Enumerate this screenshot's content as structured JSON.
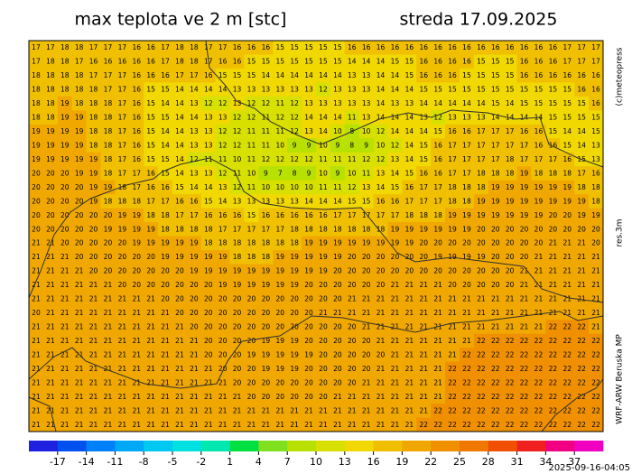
{
  "title": "max teplota ve 2 m [stc]",
  "date": "streda 17.09.2025",
  "copyright": "(c)meteopress",
  "resolution": "res.3m",
  "model": "WRF-ARW Beruska MP",
  "timestamp": "2025-09-16-04:05",
  "grid": {
    "rows": [
      [
        17,
        17,
        18,
        18,
        17,
        17,
        17,
        16,
        16,
        17,
        18,
        18,
        17,
        17,
        16,
        16,
        16,
        15,
        15,
        15,
        15,
        15,
        16,
        16,
        16,
        16,
        16,
        16,
        16,
        16,
        16,
        16,
        16,
        16,
        16,
        16,
        16,
        17,
        17,
        17
      ],
      [
        17,
        18,
        18,
        17,
        16,
        16,
        16,
        16,
        16,
        17,
        18,
        18,
        17,
        16,
        16,
        15,
        15,
        15,
        15,
        15,
        15,
        15,
        14,
        14,
        14,
        15,
        15,
        16,
        16,
        16,
        16,
        15,
        15,
        15,
        16,
        16,
        16,
        17,
        17,
        17
      ],
      [
        18,
        18,
        18,
        18,
        17,
        17,
        17,
        16,
        16,
        16,
        17,
        17,
        16,
        15,
        15,
        15,
        14,
        14,
        14,
        14,
        14,
        14,
        13,
        13,
        14,
        14,
        15,
        16,
        16,
        16,
        15,
        15,
        15,
        15,
        16,
        16,
        16,
        16,
        16,
        16
      ],
      [
        18,
        18,
        18,
        18,
        18,
        17,
        17,
        16,
        15,
        15,
        14,
        14,
        14,
        14,
        13,
        13,
        13,
        13,
        13,
        13,
        12,
        13,
        13,
        13,
        14,
        14,
        14,
        15,
        15,
        15,
        15,
        15,
        15,
        15,
        15,
        15,
        15,
        15,
        16,
        16
      ],
      [
        18,
        18,
        19,
        18,
        18,
        18,
        17,
        16,
        15,
        14,
        14,
        13,
        12,
        12,
        13,
        12,
        12,
        11,
        12,
        13,
        13,
        13,
        13,
        13,
        14,
        13,
        13,
        14,
        14,
        14,
        14,
        14,
        15,
        14,
        15,
        15,
        15,
        15,
        15,
        16
      ],
      [
        18,
        18,
        19,
        19,
        18,
        18,
        17,
        16,
        15,
        15,
        14,
        14,
        13,
        13,
        12,
        12,
        11,
        12,
        12,
        14,
        14,
        14,
        11,
        13,
        14,
        14,
        14,
        13,
        12,
        13,
        13,
        13,
        14,
        14,
        14,
        14,
        15,
        15,
        15,
        15
      ],
      [
        19,
        19,
        19,
        19,
        18,
        18,
        17,
        16,
        15,
        14,
        14,
        13,
        13,
        12,
        12,
        11,
        11,
        11,
        12,
        13,
        14,
        10,
        8,
        10,
        12,
        14,
        14,
        14,
        15,
        16,
        16,
        17,
        17,
        17,
        16,
        16,
        15,
        14,
        14,
        15
      ],
      [
        19,
        19,
        19,
        19,
        18,
        18,
        17,
        16,
        15,
        14,
        14,
        13,
        13,
        12,
        12,
        11,
        11,
        10,
        9,
        9,
        10,
        9,
        8,
        9,
        10,
        12,
        14,
        15,
        16,
        17,
        17,
        17,
        17,
        17,
        17,
        16,
        16,
        15,
        14,
        13
      ],
      [
        19,
        19,
        19,
        19,
        19,
        18,
        17,
        16,
        15,
        15,
        14,
        12,
        11,
        11,
        10,
        11,
        12,
        12,
        12,
        12,
        11,
        11,
        11,
        12,
        12,
        13,
        14,
        15,
        16,
        17,
        17,
        17,
        17,
        18,
        17,
        17,
        17,
        16,
        15,
        13
      ],
      [
        20,
        20,
        20,
        19,
        19,
        18,
        17,
        17,
        16,
        15,
        14,
        13,
        13,
        12,
        11,
        10,
        9,
        7,
        8,
        9,
        10,
        9,
        10,
        11,
        13,
        14,
        15,
        16,
        16,
        17,
        17,
        18,
        18,
        18,
        19,
        18,
        18,
        18,
        17,
        16
      ],
      [
        20,
        20,
        20,
        20,
        19,
        19,
        18,
        17,
        16,
        16,
        15,
        14,
        14,
        13,
        12,
        11,
        10,
        10,
        10,
        10,
        11,
        11,
        12,
        13,
        14,
        15,
        16,
        17,
        17,
        18,
        18,
        18,
        19,
        19,
        19,
        19,
        19,
        19,
        18,
        18
      ],
      [
        20,
        20,
        20,
        20,
        19,
        18,
        18,
        18,
        17,
        17,
        16,
        16,
        15,
        14,
        13,
        13,
        13,
        13,
        13,
        14,
        14,
        14,
        15,
        15,
        16,
        16,
        17,
        17,
        17,
        18,
        18,
        19,
        19,
        19,
        19,
        19,
        19,
        19,
        19,
        18
      ],
      [
        20,
        20,
        20,
        20,
        20,
        20,
        19,
        19,
        18,
        18,
        17,
        17,
        16,
        16,
        16,
        15,
        16,
        16,
        16,
        16,
        16,
        17,
        17,
        17,
        17,
        17,
        18,
        18,
        18,
        19,
        19,
        19,
        19,
        19,
        19,
        19,
        20,
        20,
        19,
        19
      ],
      [
        20,
        20,
        20,
        20,
        20,
        19,
        19,
        19,
        19,
        18,
        18,
        18,
        18,
        17,
        17,
        17,
        17,
        17,
        18,
        18,
        18,
        18,
        18,
        18,
        18,
        19,
        19,
        19,
        19,
        19,
        19,
        20,
        20,
        20,
        20,
        20,
        20,
        20,
        20,
        20
      ],
      [
        21,
        21,
        20,
        20,
        20,
        20,
        20,
        19,
        19,
        19,
        19,
        19,
        18,
        18,
        18,
        18,
        18,
        18,
        18,
        19,
        19,
        19,
        19,
        19,
        19,
        19,
        19,
        20,
        20,
        20,
        20,
        20,
        20,
        20,
        20,
        20,
        21,
        21,
        21,
        20
      ],
      [
        21,
        21,
        21,
        20,
        20,
        20,
        20,
        20,
        20,
        19,
        19,
        19,
        19,
        19,
        18,
        18,
        18,
        19,
        19,
        19,
        19,
        19,
        20,
        20,
        20,
        20,
        20,
        20,
        19,
        19,
        19,
        19,
        20,
        20,
        20,
        21,
        21,
        21,
        21,
        21
      ],
      [
        21,
        21,
        21,
        21,
        20,
        20,
        20,
        20,
        20,
        20,
        20,
        19,
        19,
        19,
        19,
        19,
        19,
        19,
        19,
        19,
        19,
        20,
        20,
        20,
        20,
        20,
        20,
        20,
        20,
        20,
        20,
        20,
        20,
        20,
        21,
        21,
        21,
        21,
        21,
        21
      ],
      [
        21,
        21,
        21,
        21,
        21,
        21,
        20,
        20,
        20,
        20,
        20,
        20,
        20,
        19,
        19,
        19,
        19,
        19,
        19,
        20,
        20,
        20,
        20,
        20,
        20,
        21,
        21,
        21,
        21,
        20,
        20,
        20,
        20,
        20,
        21,
        21,
        21,
        21,
        21,
        21
      ],
      [
        21,
        21,
        21,
        21,
        21,
        21,
        21,
        21,
        21,
        20,
        20,
        20,
        20,
        20,
        20,
        20,
        20,
        20,
        20,
        20,
        20,
        20,
        21,
        21,
        21,
        21,
        21,
        21,
        21,
        21,
        21,
        21,
        21,
        21,
        21,
        21,
        21,
        21,
        21,
        21
      ],
      [
        20,
        21,
        21,
        21,
        21,
        21,
        21,
        21,
        21,
        21,
        20,
        20,
        20,
        20,
        20,
        20,
        20,
        20,
        20,
        20,
        21,
        21,
        21,
        21,
        21,
        21,
        21,
        21,
        21,
        21,
        21,
        21,
        21,
        21,
        21,
        21,
        21,
        21,
        21,
        21
      ],
      [
        21,
        21,
        21,
        21,
        21,
        21,
        21,
        21,
        21,
        21,
        21,
        20,
        20,
        20,
        20,
        20,
        20,
        20,
        20,
        20,
        20,
        20,
        20,
        21,
        21,
        21,
        21,
        21,
        21,
        21,
        21,
        21,
        21,
        21,
        21,
        21,
        22,
        22,
        22,
        21
      ],
      [
        21,
        21,
        21,
        21,
        21,
        21,
        21,
        21,
        21,
        21,
        21,
        21,
        20,
        20,
        20,
        20,
        19,
        19,
        19,
        20,
        20,
        20,
        20,
        20,
        21,
        21,
        21,
        21,
        21,
        21,
        21,
        22,
        22,
        22,
        22,
        22,
        22,
        22,
        22,
        22
      ],
      [
        21,
        21,
        21,
        21,
        21,
        21,
        21,
        21,
        21,
        21,
        21,
        21,
        20,
        20,
        20,
        19,
        19,
        19,
        19,
        19,
        20,
        20,
        20,
        20,
        20,
        21,
        21,
        21,
        21,
        21,
        22,
        22,
        22,
        22,
        22,
        22,
        22,
        22,
        22,
        22
      ],
      [
        21,
        21,
        21,
        21,
        21,
        21,
        21,
        21,
        21,
        21,
        21,
        21,
        21,
        20,
        20,
        20,
        19,
        19,
        19,
        20,
        20,
        20,
        20,
        20,
        21,
        21,
        21,
        21,
        21,
        22,
        22,
        22,
        22,
        22,
        22,
        22,
        22,
        22,
        22,
        22
      ],
      [
        21,
        21,
        21,
        21,
        21,
        21,
        21,
        21,
        21,
        21,
        21,
        21,
        21,
        21,
        20,
        20,
        20,
        20,
        20,
        20,
        20,
        20,
        20,
        21,
        21,
        21,
        21,
        21,
        21,
        22,
        22,
        22,
        22,
        22,
        22,
        22,
        22,
        22,
        22,
        22
      ],
      [
        21,
        21,
        21,
        21,
        21,
        21,
        21,
        21,
        21,
        21,
        21,
        21,
        21,
        21,
        21,
        20,
        20,
        20,
        20,
        20,
        20,
        21,
        21,
        21,
        21,
        21,
        21,
        21,
        21,
        22,
        22,
        22,
        22,
        22,
        22,
        22,
        22,
        22,
        22,
        22
      ],
      [
        21,
        21,
        21,
        21,
        21,
        21,
        21,
        21,
        21,
        21,
        21,
        21,
        21,
        21,
        21,
        21,
        21,
        21,
        21,
        21,
        21,
        21,
        21,
        21,
        21,
        21,
        21,
        21,
        22,
        22,
        22,
        22,
        22,
        22,
        22,
        22,
        22,
        22,
        22,
        22
      ],
      [
        21,
        21,
        21,
        21,
        21,
        21,
        21,
        21,
        21,
        21,
        21,
        21,
        21,
        21,
        21,
        21,
        21,
        21,
        21,
        21,
        21,
        21,
        21,
        21,
        21,
        21,
        21,
        22,
        22,
        22,
        22,
        22,
        22,
        22,
        22,
        22,
        22,
        22,
        22,
        22
      ]
    ]
  },
  "colorbar": {
    "lim": [
      -20,
      40
    ],
    "colors": [
      "#2020e0",
      "#0050f0",
      "#0080f8",
      "#00a8f8",
      "#00c8f0",
      "#00e0e0",
      "#00e8b0",
      "#00e040",
      "#80e020",
      "#b8e000",
      "#d8e000",
      "#f0d800",
      "#f0c000",
      "#f0a800",
      "#f09000",
      "#f07800",
      "#f05000",
      "#f02020",
      "#f00080",
      "#f000c0"
    ],
    "ticks": [
      -17,
      -14,
      -11,
      -8,
      -5,
      -2,
      1,
      4,
      7,
      10,
      13,
      16,
      19,
      22,
      25,
      28,
      31,
      34,
      37
    ]
  }
}
